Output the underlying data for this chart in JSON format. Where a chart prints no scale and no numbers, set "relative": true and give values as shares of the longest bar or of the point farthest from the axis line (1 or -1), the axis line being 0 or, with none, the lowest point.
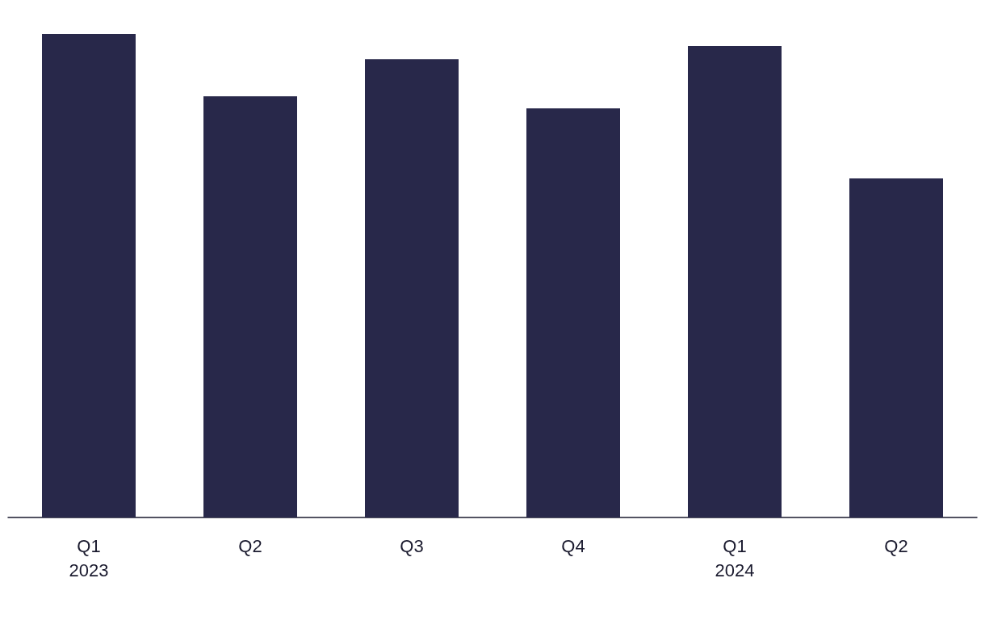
{
  "chart_data": {
    "type": "bar",
    "relative": true,
    "categories": [
      "Q1\n2023",
      "Q2",
      "Q3",
      "Q4",
      "Q1\n2024",
      "Q2"
    ],
    "values": [
      1,
      0.871,
      0.948,
      0.846,
      0.975,
      0.701
    ],
    "color": "#28284a"
  }
}
